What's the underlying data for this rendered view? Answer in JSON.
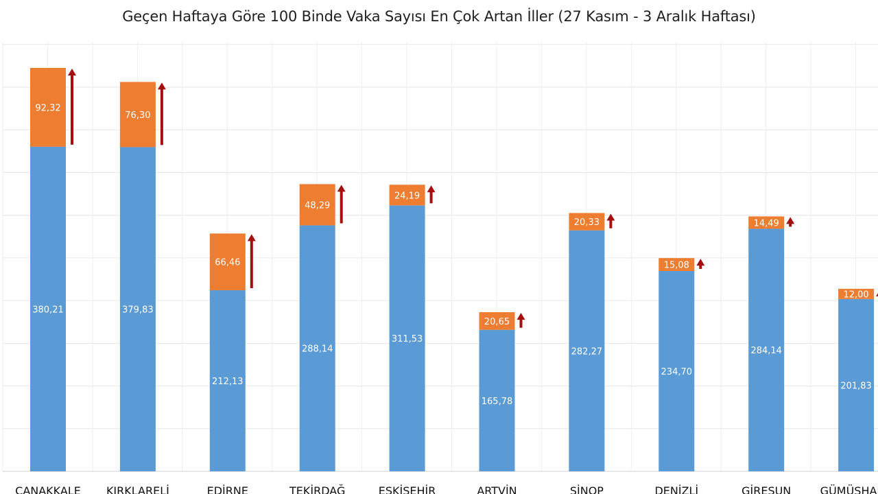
{
  "chart_data": {
    "type": "bar",
    "stacked": true,
    "title": "Geçen Haftaya Göre 100 Binde Vaka Sayısı En Çok Artan İller (27 Kasım - 3 Aralık Haftası)",
    "categories": [
      "ÇANAKKALE",
      "KIRKLARELİ",
      "EDİRNE",
      "TEKİRDAĞ",
      "ESKİŞEHİR",
      "ARTVİN",
      "SİNOP",
      "DENİZLİ",
      "GİRESUN",
      "GÜMÜŞHANE"
    ],
    "series": [
      {
        "values": [
          380.21,
          379.83,
          212.13,
          288.14,
          311.53,
          165.78,
          282.27,
          234.7,
          284.14,
          201.83
        ],
        "labels": [
          "380,21",
          "379,83",
          "212,13",
          "288,14",
          "311,53",
          "165,78",
          "282,27",
          "234,70",
          "284,14",
          "201,83"
        ],
        "color": "#5b9bd5"
      },
      {
        "values": [
          92.32,
          76.3,
          66.46,
          48.29,
          24.19,
          20.65,
          20.33,
          15.08,
          14.49,
          12.0
        ],
        "labels": [
          "92,32",
          "76,30",
          "66,46",
          "48,29",
          "24,19",
          "20,65",
          "20,33",
          "15,08",
          "14,49",
          "12,00"
        ],
        "color": "#ed7d31"
      }
    ],
    "increase_arrow_color": "#a50f0f",
    "gridlines": true,
    "ylim": [
      0,
      500
    ]
  }
}
